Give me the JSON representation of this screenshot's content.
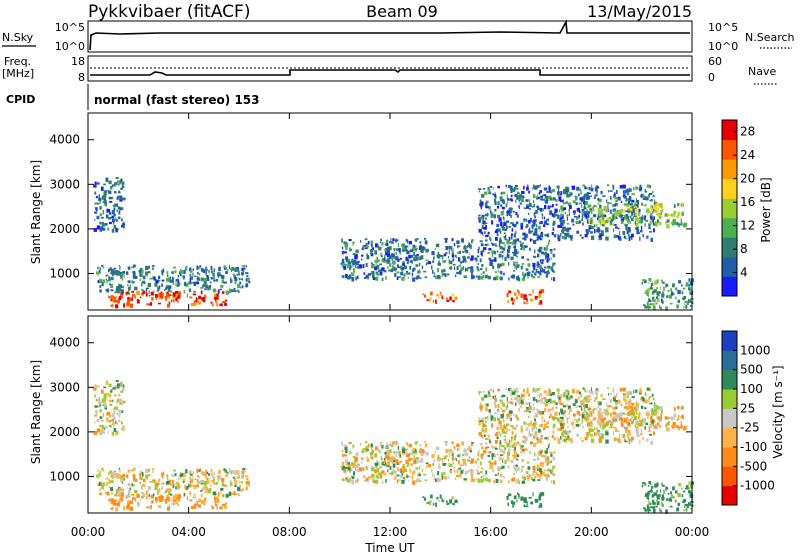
{
  "header": {
    "station": "Pykkvibaer (fitACF)",
    "beam": "Beam 09",
    "date": "13/May/2015"
  },
  "labels": {
    "nsky": "N.Sky",
    "nsky_ticks": [
      "10^5",
      "10^0"
    ],
    "nsearch": "N.Search",
    "nsearch_ticks": [
      "10^5",
      "10^0"
    ],
    "freq": "Freq.",
    "freq_unit": "[MHz]",
    "freq_ticks": [
      "18",
      "8"
    ],
    "nave": "Nave",
    "nave_ticks": [
      "60",
      "0"
    ],
    "cpid": "CPID",
    "cpid_value": "normal (fast stereo) 153",
    "xlabel": "Time UT"
  },
  "colors": {
    "power_scale": [
      "#1a1aff",
      "#1f5fa8",
      "#2e7d6e",
      "#4caf50",
      "#9acd32",
      "#ffd11a",
      "#ff9900",
      "#ff5500",
      "#e60000"
    ],
    "velocity_scale": [
      "#e60000",
      "#ff5500",
      "#ff8c1a",
      "#ffb347",
      "#c8c8c4",
      "#99cc33",
      "#2e8b57",
      "#2a6d9a",
      "#1a3fbf"
    ]
  },
  "chart_data": [
    {
      "type": "heatmap",
      "panel": "power",
      "ylabel": "Slant Range [km]",
      "y_ticks": [
        1000,
        2000,
        3000,
        4000
      ],
      "ylim": [
        180,
        4600
      ],
      "x_ticks": [
        "00:00",
        "04:00",
        "08:00",
        "12:00",
        "16:00",
        "20:00",
        "00:00"
      ],
      "xlim_hours": [
        0,
        24
      ],
      "colorbar_label": "Power [dB]",
      "colorbar_ticks": [
        "4",
        "8",
        "12",
        "16",
        "20",
        "24",
        "28"
      ],
      "colorbar_range": [
        0,
        30
      ],
      "blobs": [
        {
          "t": [
            0.8,
            5.6
          ],
          "r": [
            300,
            620
          ],
          "level": 27
        },
        {
          "t": [
            0.3,
            6.4
          ],
          "r": [
            600,
            1200
          ],
          "level": 8
        },
        {
          "t": [
            0.2,
            1.4
          ],
          "r": [
            2000,
            3200
          ],
          "level": 6
        },
        {
          "t": [
            13.2,
            14.6
          ],
          "r": [
            400,
            600
          ],
          "level": 24
        },
        {
          "t": [
            16.6,
            18.0
          ],
          "r": [
            350,
            650
          ],
          "level": 26
        },
        {
          "t": [
            10.0,
            18.5
          ],
          "r": [
            900,
            1800
          ],
          "level": 7
        },
        {
          "t": [
            15.5,
            22.5
          ],
          "r": [
            1800,
            3000
          ],
          "level": 6
        },
        {
          "t": [
            19.8,
            23.8
          ],
          "r": [
            2100,
            2600
          ],
          "level": 14
        },
        {
          "t": [
            22.0,
            24.0
          ],
          "r": [
            250,
            900
          ],
          "level": 10
        }
      ]
    },
    {
      "type": "heatmap",
      "panel": "velocity",
      "ylabel": "Slant Range [km]",
      "y_ticks": [
        1000,
        2000,
        3000,
        4000
      ],
      "ylim": [
        180,
        4600
      ],
      "x_ticks": [
        "00:00",
        "04:00",
        "08:00",
        "12:00",
        "16:00",
        "20:00",
        "00:00"
      ],
      "xlim_hours": [
        0,
        24
      ],
      "colorbar_label": "Velocity [m s⁻¹]",
      "colorbar_ticks": [
        "-1000",
        "-500",
        "-100",
        "-25",
        "25",
        "100",
        "500",
        "1000"
      ],
      "colorbar_range": [
        -1200,
        1200
      ],
      "blobs": [
        {
          "t": [
            0.8,
            5.6
          ],
          "r": [
            300,
            620
          ],
          "v": -150
        },
        {
          "t": [
            0.3,
            6.4
          ],
          "r": [
            600,
            1200
          ],
          "v": 0
        },
        {
          "t": [
            0.2,
            1.4
          ],
          "r": [
            2000,
            3200
          ],
          "v": 0
        },
        {
          "t": [
            13.2,
            14.6
          ],
          "r": [
            400,
            600
          ],
          "v": 200
        },
        {
          "t": [
            16.6,
            18.0
          ],
          "r": [
            350,
            650
          ],
          "v": 300
        },
        {
          "t": [
            10.0,
            18.5
          ],
          "r": [
            900,
            1800
          ],
          "v": 0
        },
        {
          "t": [
            15.5,
            22.5
          ],
          "r": [
            1800,
            3000
          ],
          "v": 0
        },
        {
          "t": [
            19.8,
            23.8
          ],
          "r": [
            2100,
            2600
          ],
          "v": -50
        },
        {
          "t": [
            22.0,
            24.0
          ],
          "r": [
            250,
            900
          ],
          "v": 200
        }
      ]
    }
  ]
}
